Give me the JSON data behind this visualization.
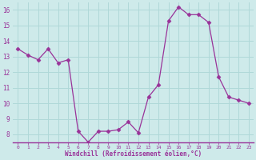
{
  "x": [
    0,
    1,
    2,
    3,
    4,
    5,
    6,
    7,
    8,
    9,
    10,
    11,
    12,
    13,
    14,
    15,
    16,
    17,
    18,
    19,
    20,
    21,
    22,
    23
  ],
  "y": [
    13.5,
    13.1,
    12.8,
    13.5,
    12.6,
    12.8,
    8.2,
    7.5,
    8.2,
    8.2,
    8.3,
    8.8,
    8.1,
    10.4,
    11.2,
    15.3,
    16.2,
    15.7,
    15.7,
    15.2,
    11.7,
    10.4,
    10.2,
    10.0
  ],
  "line_color": "#993399",
  "marker": "D",
  "marker_size": 2.5,
  "bg_color": "#ceeaea",
  "grid_color": "#b0d8d8",
  "xlabel": "Windchill (Refroidissement éolien,°C)",
  "xlabel_color": "#993399",
  "tick_color": "#993399",
  "label_color": "#993399",
  "ylim": [
    7.5,
    16.5
  ],
  "xlim": [
    -0.5,
    23.5
  ],
  "yticks": [
    8,
    9,
    10,
    11,
    12,
    13,
    14,
    15,
    16
  ],
  "xticks": [
    0,
    1,
    2,
    3,
    4,
    5,
    6,
    7,
    8,
    9,
    10,
    11,
    12,
    13,
    14,
    15,
    16,
    17,
    18,
    19,
    20,
    21,
    22,
    23
  ]
}
